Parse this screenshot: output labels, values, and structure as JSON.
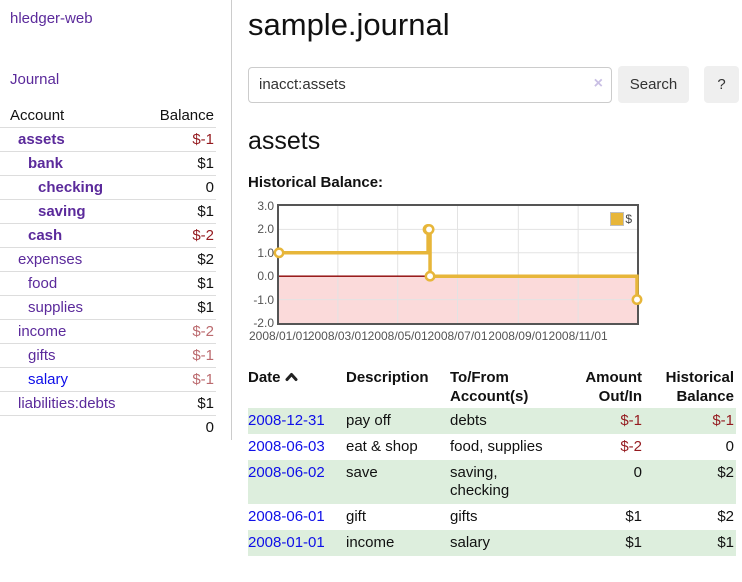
{
  "app": {
    "brand": "hledger-web"
  },
  "colors": {
    "link_purple": "#5b2a9b",
    "link_blue": "#0f0fe8",
    "negative_strong": "#941a1f",
    "negative_soft": "#bb6a6e",
    "row_stripe_green": "#ddeedd",
    "chart_line_gold": "#e7b63a",
    "chart_negative_region_pink": "#fbdada",
    "chart_zero_line_red": "#8b0000"
  },
  "sidebar": {
    "nav": {
      "journal_label": "Journal"
    },
    "accounts_table": {
      "headers": {
        "account": "Account",
        "balance": "Balance"
      },
      "rows": [
        {
          "account": "assets",
          "balance": "$-1",
          "indent": 1,
          "bold": true
        },
        {
          "account": "bank",
          "balance": "$1",
          "indent": 2,
          "bold": true
        },
        {
          "account": "checking",
          "balance": "0",
          "indent": 3,
          "bold": true
        },
        {
          "account": "saving",
          "balance": "$1",
          "indent": 3,
          "bold": true
        },
        {
          "account": "cash",
          "balance": "$-2",
          "indent": 2,
          "bold": true
        },
        {
          "account": "expenses",
          "balance": "$2",
          "indent": 1,
          "bold": false
        },
        {
          "account": "food",
          "balance": "$1",
          "indent": 2,
          "bold": false
        },
        {
          "account": "supplies",
          "balance": "$1",
          "indent": 2,
          "bold": false
        },
        {
          "account": "income",
          "balance": "$-2",
          "indent": 1,
          "bold": false
        },
        {
          "account": "gifts",
          "balance": "$-1",
          "indent": 2,
          "bold": false
        },
        {
          "account": "salary",
          "balance": "$-1",
          "indent": 2,
          "bold": false,
          "link": "blue"
        },
        {
          "account": "liabilities:debts",
          "balance": "$1",
          "indent": 1,
          "bold": false
        }
      ],
      "total": "0"
    }
  },
  "header": {
    "title": "sample.journal"
  },
  "search": {
    "value": "inacct:assets",
    "clear_icon": "×",
    "search_button": "Search",
    "help_button": "?"
  },
  "account_page": {
    "heading": "assets",
    "chart_label": "Historical Balance:"
  },
  "chart_data": {
    "type": "line",
    "title": "Historical Balance",
    "step": true,
    "x_range": [
      "2008-01-01",
      "2008-12-31"
    ],
    "ylim": [
      -2,
      3
    ],
    "series": [
      {
        "name": "$",
        "color": "#e7b63a",
        "points": [
          [
            "2008-01-01",
            1
          ],
          [
            "2008-06-01",
            2
          ],
          [
            "2008-06-02",
            2
          ],
          [
            "2008-06-03",
            0
          ],
          [
            "2008-12-31",
            -1
          ]
        ]
      }
    ],
    "yticks": [
      3.0,
      2.0,
      1.0,
      0.0,
      -1.0,
      -2.0
    ],
    "ytick_labels": [
      "3.0",
      "2.0",
      "1.0",
      "0.0",
      "-1.0",
      "-2.0"
    ],
    "xticks": [
      "2008-01-01",
      "2008-03-01",
      "2008-05-01",
      "2008-07-01",
      "2008-09-01",
      "2008-11-01"
    ],
    "xtick_labels": [
      "2008/01/01",
      "2008/03/01",
      "2008/05/01",
      "2008/07/01",
      "2008/09/01",
      "2008/11/01"
    ],
    "grid": true,
    "legend": [
      {
        "label": "$",
        "color": "#e7b63a"
      }
    ],
    "legend_position": "top-right",
    "negative_region_color": "#fbdada",
    "zero_line_color": "#8b0000"
  },
  "register": {
    "headers": [
      {
        "label": "Date",
        "sort": "asc"
      },
      {
        "label": "Description"
      },
      {
        "label": "To/From Account(s)"
      },
      {
        "label": "Amount Out/In"
      },
      {
        "label": "Historical Balance"
      }
    ],
    "rows": [
      {
        "date": "2008-12-31",
        "description": "pay off",
        "accounts": "debts",
        "amount": "$-1",
        "balance": "$-1"
      },
      {
        "date": "2008-06-03",
        "description": "eat & shop",
        "accounts": "food, supplies",
        "amount": "$-2",
        "balance": "0"
      },
      {
        "date": "2008-06-02",
        "description": "save",
        "accounts": "saving, checking",
        "amount": "0",
        "balance": "$2"
      },
      {
        "date": "2008-06-01",
        "description": "gift",
        "accounts": "gifts",
        "amount": "$1",
        "balance": "$2"
      },
      {
        "date": "2008-01-01",
        "description": "income",
        "accounts": "salary",
        "amount": "$1",
        "balance": "$1"
      }
    ]
  }
}
